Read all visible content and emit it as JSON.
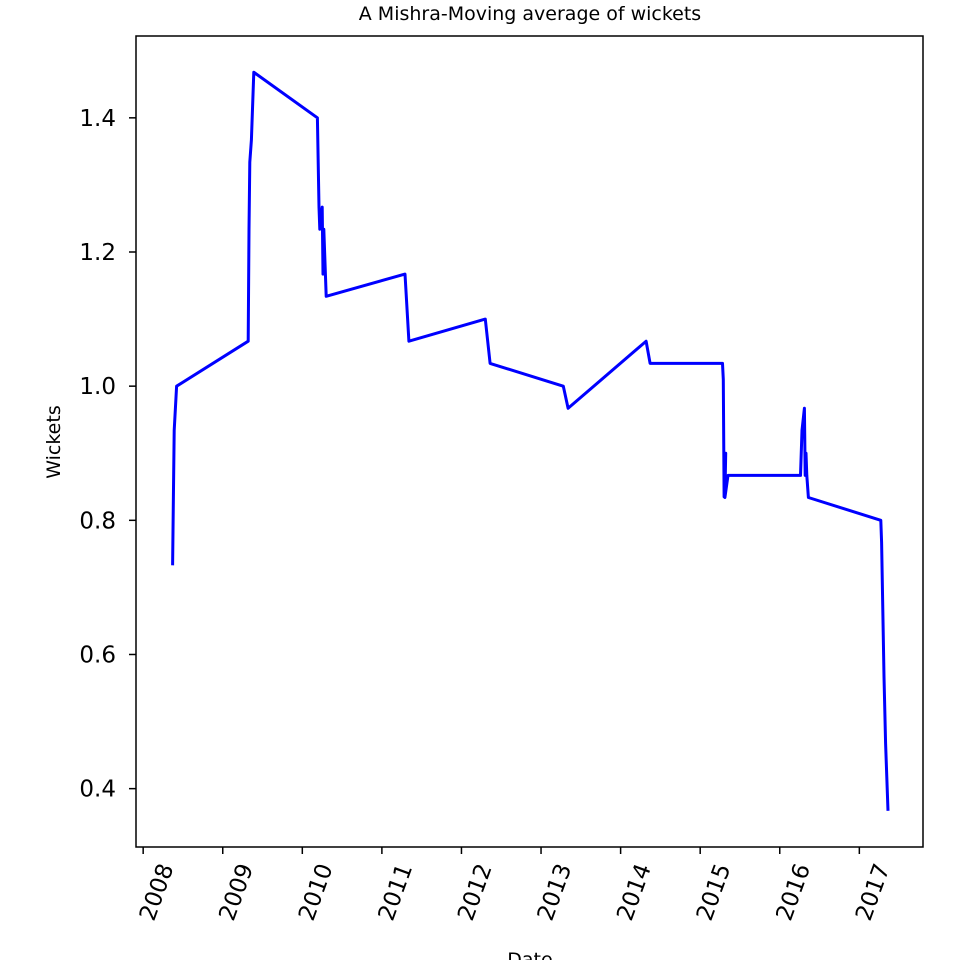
{
  "chart_data": {
    "type": "line",
    "title": "A Mishra-Moving average of wickets",
    "xlabel": "Date",
    "ylabel": "Wickets",
    "xlim": [
      2007.91,
      2017.8
    ],
    "ylim": [
      0.313,
      1.522
    ],
    "grid": false,
    "xticks": [
      2008,
      2009,
      2010,
      2011,
      2012,
      2013,
      2014,
      2015,
      2016,
      2017
    ],
    "xtick_labels": [
      "2008",
      "2009",
      "2010",
      "2011",
      "2012",
      "2013",
      "2014",
      "2015",
      "2016",
      "2017"
    ],
    "yticks": [
      0.4,
      0.6,
      0.8,
      1.0,
      1.2,
      1.4
    ],
    "ytick_labels": [
      "0.4",
      "0.6",
      "0.8",
      "1.0",
      "1.2",
      "1.4"
    ],
    "series": [
      {
        "name": "Moving average of wickets",
        "color": "#0000ff",
        "x": [
          2008.37,
          2008.38,
          2008.39,
          2008.42,
          2009.32,
          2009.33,
          2009.34,
          2009.36,
          2009.39,
          2010.19,
          2010.21,
          2010.22,
          2010.25,
          2010.26,
          2010.27,
          2010.3,
          2011.29,
          2011.34,
          2012.3,
          2012.36,
          2013.28,
          2013.34,
          2014.32,
          2014.37,
          2015.28,
          2015.29,
          2015.3,
          2015.32,
          2015.31,
          2015.35,
          2016.26,
          2016.28,
          2016.31,
          2016.32,
          2016.33,
          2016.34,
          2016.36,
          2017.27,
          2017.28,
          2017.3,
          2017.31,
          2017.33,
          2017.36
        ],
        "y": [
          0.733,
          0.835,
          0.934,
          1.0,
          1.067,
          1.233,
          1.334,
          1.367,
          1.468,
          1.4,
          1.267,
          1.234,
          1.267,
          1.167,
          1.234,
          1.134,
          1.167,
          1.067,
          1.1,
          1.034,
          1.0,
          0.967,
          1.067,
          1.034,
          1.034,
          1.01,
          0.835,
          0.9,
          0.834,
          0.867,
          0.867,
          0.934,
          0.967,
          0.867,
          0.9,
          0.867,
          0.834,
          0.8,
          0.767,
          0.634,
          0.567,
          0.467,
          0.367
        ]
      }
    ]
  }
}
